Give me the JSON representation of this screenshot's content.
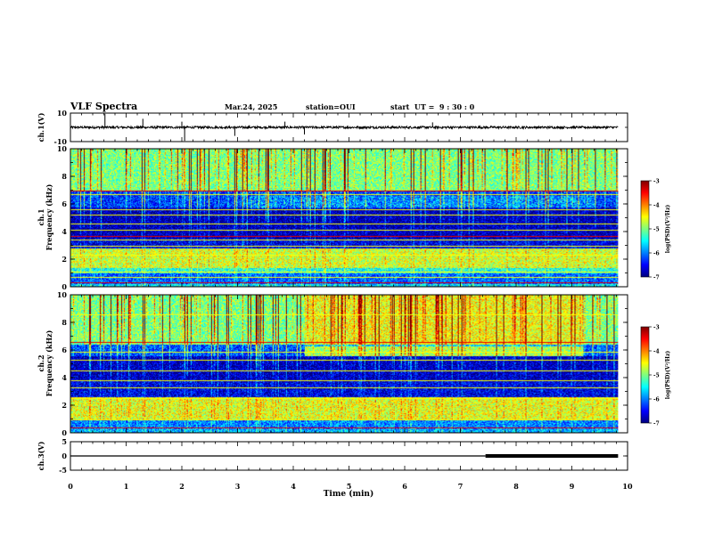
{
  "header": {
    "title": "VLF Spectra",
    "date": "Mar.24, 2025",
    "station": "station=OUI",
    "start_time": "start  UT =  9 : 30 : 0"
  },
  "chart_data": [
    {
      "type": "line",
      "panel": "ch1-waveform",
      "ylabel": "ch.1(V)",
      "ylim": [
        -10,
        10
      ],
      "yticks": [
        10,
        -10
      ],
      "xlim": [
        0,
        10
      ],
      "baseline": 0,
      "noise_amplitude": 0.8,
      "spikes": [
        {
          "t": 0.62,
          "v": 9.5
        },
        {
          "t": 1.3,
          "v": 6
        },
        {
          "t": 2.0,
          "v": 4
        },
        {
          "t": 2.05,
          "v": -9.5
        },
        {
          "t": 2.95,
          "v": -6
        },
        {
          "t": 3.85,
          "v": 4
        },
        {
          "t": 4.2,
          "v": -5
        },
        {
          "t": 6.5,
          "v": 3.5
        }
      ]
    },
    {
      "type": "heatmap",
      "panel": "ch1-spectrogram",
      "ylabel": "Frequency (kHz)",
      "ylabel_channel": "ch.1",
      "ylim": [
        0,
        10
      ],
      "yticks": [
        0,
        2,
        4,
        6,
        8,
        10
      ],
      "xlim": [
        0,
        10
      ],
      "data_end_min": 9.83,
      "colorbar": {
        "label": "log(PSD)(V²/Hz)",
        "range": [
          -7,
          -3
        ],
        "ticks": [
          -3,
          -4,
          -5,
          -6,
          -7
        ]
      },
      "bands": [
        {
          "f": [
            0.0,
            0.25
          ],
          "level": 0.35
        },
        {
          "f": [
            0.25,
            1.0
          ],
          "level": 0.22
        },
        {
          "f": [
            1.0,
            1.4
          ],
          "level": 0.4
        },
        {
          "f": [
            1.4,
            2.8
          ],
          "level": 0.58
        },
        {
          "f": [
            2.8,
            3.5
          ],
          "level": 0.1
        },
        {
          "f": [
            3.5,
            5.8
          ],
          "level": 0.05
        },
        {
          "f": [
            5.8,
            7.0
          ],
          "level": 0.18
        },
        {
          "f": [
            7.0,
            10.0
          ],
          "level": 0.5
        }
      ],
      "lines_khz": [
        0.3,
        0.7,
        1.1,
        2.3,
        3.0,
        3.4,
        3.65,
        4.1,
        4.6,
        5.2,
        5.6,
        6.7,
        7.0
      ],
      "red_lines_khz": [
        0.3,
        3.65,
        6.95
      ]
    },
    {
      "type": "heatmap",
      "panel": "ch2-spectrogram",
      "ylabel": "Frequency (kHz)",
      "ylabel_channel": "ch.2",
      "ylim": [
        0,
        10
      ],
      "yticks": [
        0,
        2,
        4,
        6,
        8,
        10
      ],
      "xlim": [
        0,
        10
      ],
      "data_end_min": 9.83,
      "colorbar": {
        "label": "log(PSD)(V²/Hz)",
        "range": [
          -7,
          -3
        ],
        "ticks": [
          -3,
          -4,
          -5,
          -6,
          -7
        ]
      },
      "bands": [
        {
          "f": [
            0.0,
            0.3
          ],
          "level": 0.3
        },
        {
          "f": [
            0.3,
            1.0
          ],
          "level": 0.25
        },
        {
          "f": [
            1.0,
            2.6
          ],
          "level": 0.6
        },
        {
          "f": [
            2.6,
            3.8
          ],
          "level": 0.1
        },
        {
          "f": [
            3.8,
            5.6
          ],
          "level": 0.06
        },
        {
          "f": [
            5.6,
            6.4
          ],
          "level": 0.2
        },
        {
          "f": [
            6.4,
            10.0
          ],
          "level": 0.5
        }
      ],
      "lines_khz": [
        0.4,
        1.0,
        2.5,
        3.3,
        3.8,
        4.5,
        5.3,
        5.9,
        6.6,
        8.6
      ],
      "red_lines_khz": [
        0.4,
        6.6
      ]
    },
    {
      "type": "line",
      "panel": "ch3-waveform",
      "ylabel": "ch.3(V)",
      "ylim": [
        -5,
        5
      ],
      "yticks": [
        5,
        0,
        -5
      ],
      "xlim": [
        0,
        10
      ],
      "x": [
        0,
        7.45,
        7.45,
        9.83
      ],
      "y": [
        0,
        0,
        0,
        0
      ],
      "thick_from_min": 7.45
    }
  ],
  "xaxis": {
    "label": "Time (min)",
    "ticks": [
      0,
      1,
      2,
      3,
      4,
      5,
      6,
      7,
      8,
      9,
      10
    ]
  },
  "colors": {
    "colormap": [
      "#00007f",
      "#0000ff",
      "#007fff",
      "#00ffff",
      "#7fff7f",
      "#ffff00",
      "#ff7f00",
      "#ff0000",
      "#7f0000"
    ]
  }
}
